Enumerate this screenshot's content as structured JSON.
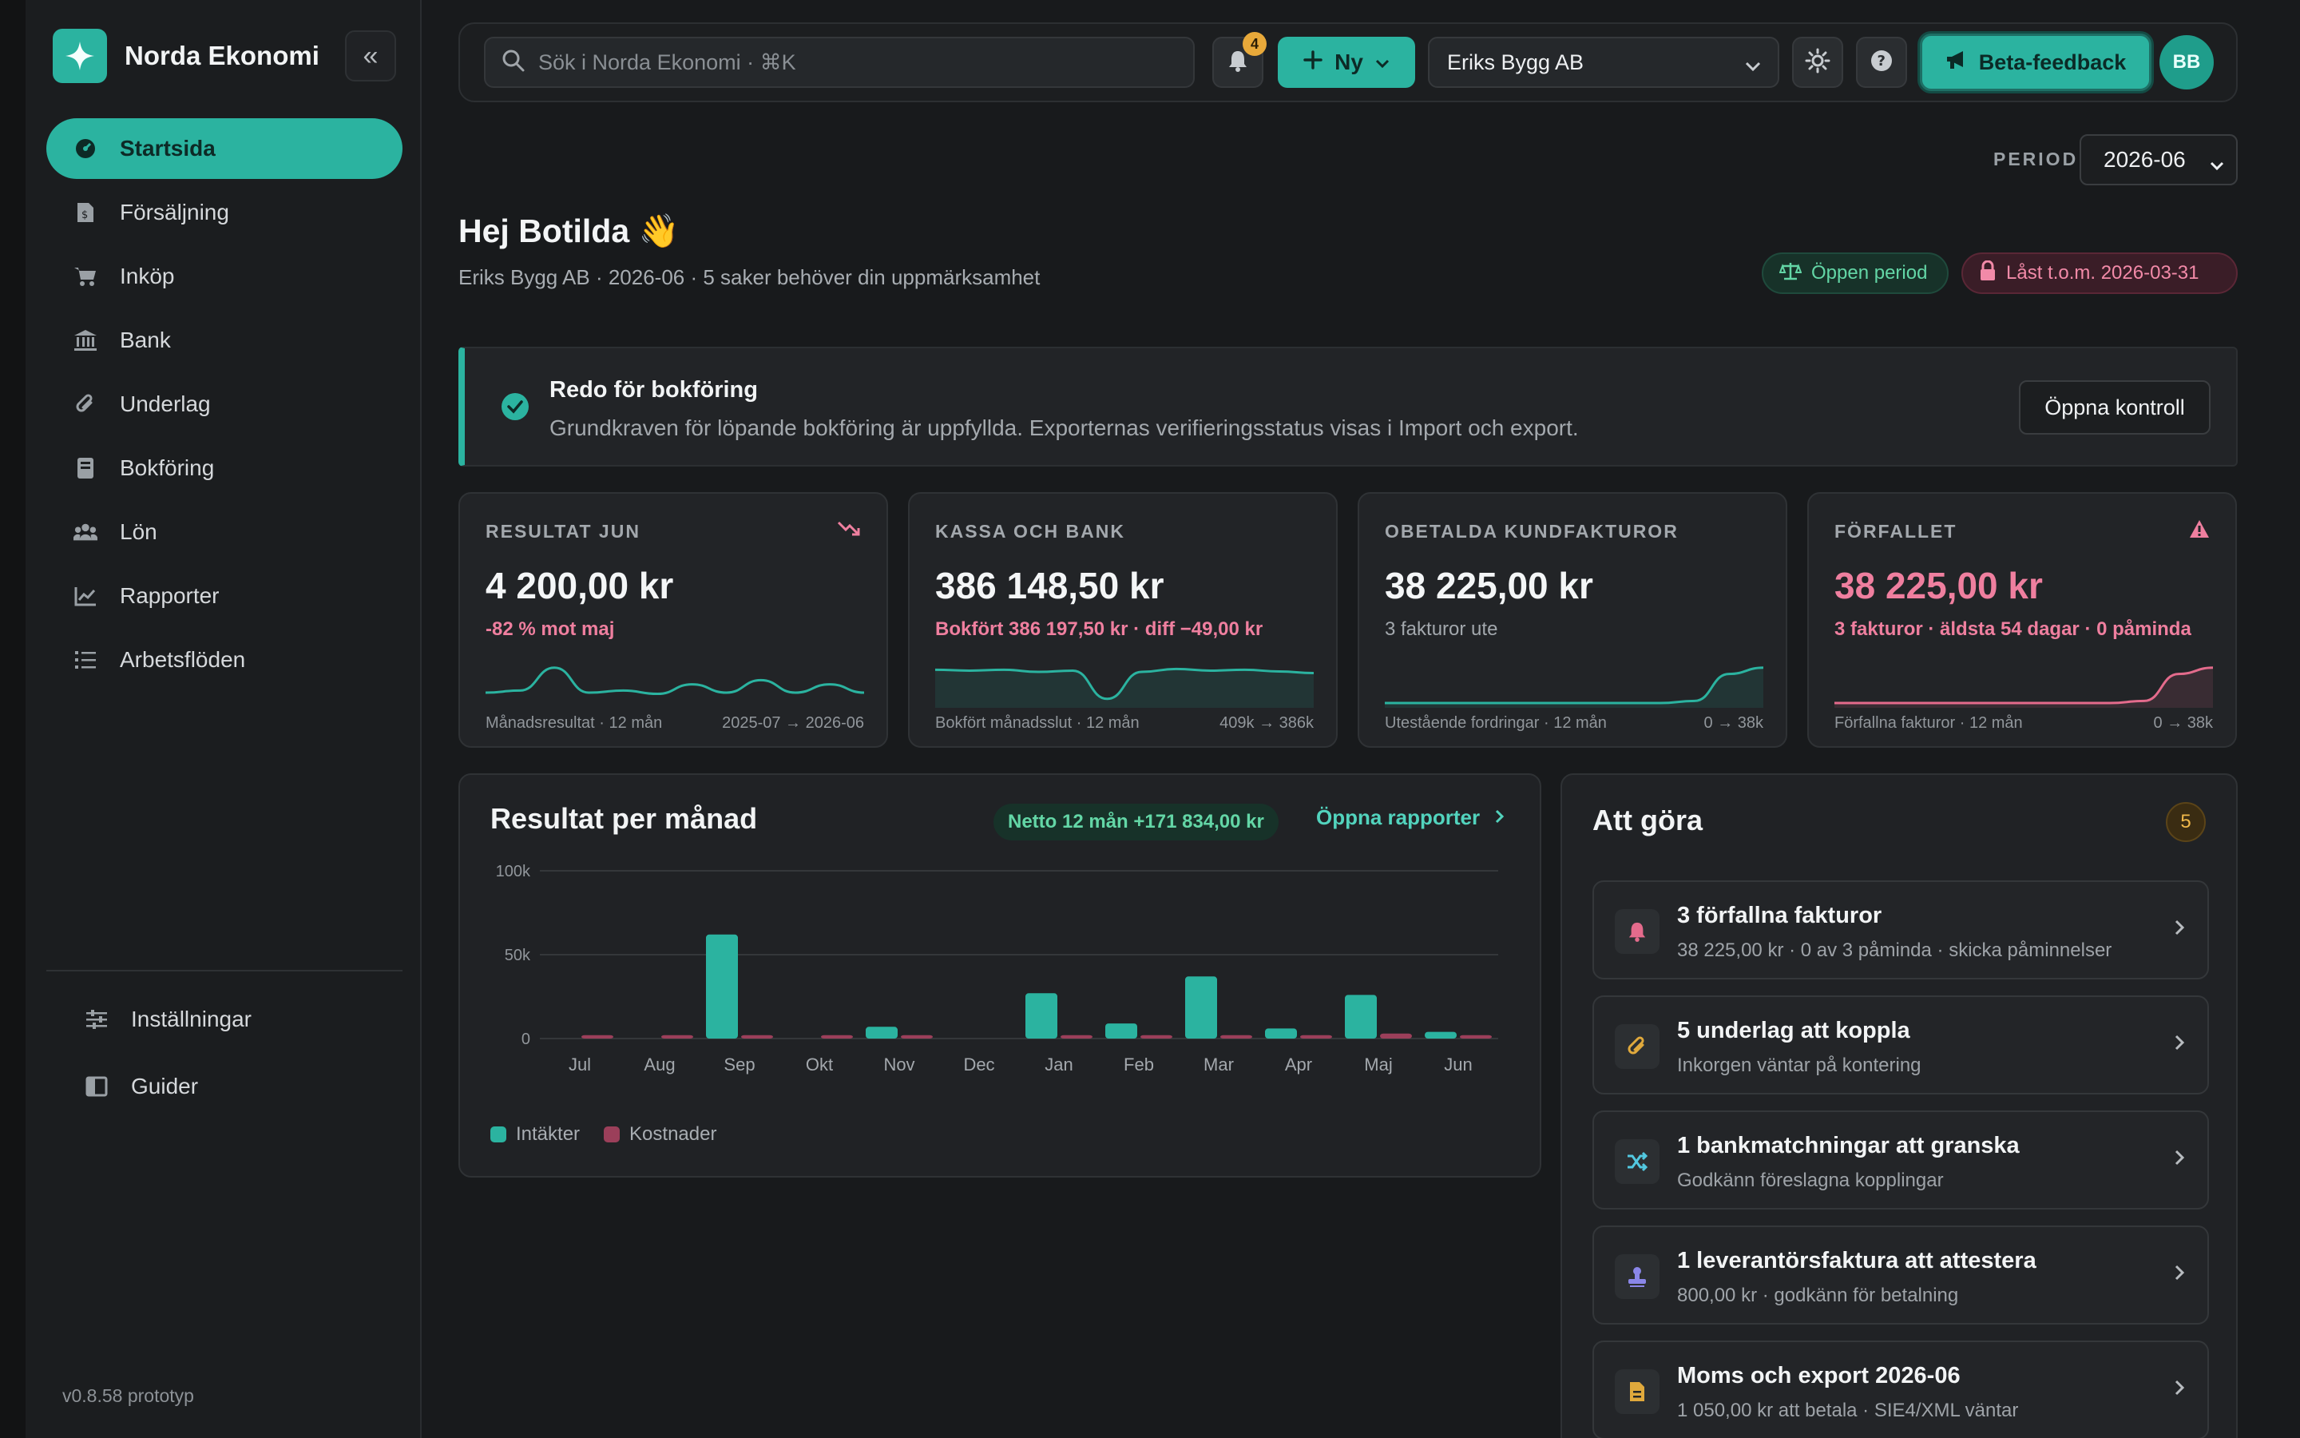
{
  "app": {
    "name": "Norda Ekonomi",
    "version": "v0.8.58 prototyp"
  },
  "sidebar": {
    "items": [
      {
        "label": "Startsida",
        "icon": "dashboard-icon",
        "active": true
      },
      {
        "label": "Försäljning",
        "icon": "invoice-icon"
      },
      {
        "label": "Inköp",
        "icon": "cart-icon"
      },
      {
        "label": "Bank",
        "icon": "bank-icon"
      },
      {
        "label": "Underlag",
        "icon": "paperclip-icon"
      },
      {
        "label": "Bokföring",
        "icon": "book-icon"
      },
      {
        "label": "Lön",
        "icon": "users-icon"
      },
      {
        "label": "Rapporter",
        "icon": "line-chart-icon"
      },
      {
        "label": "Arbetsflöden",
        "icon": "checklist-icon"
      }
    ],
    "footer_items": [
      {
        "label": "Inställningar",
        "icon": "sliders-icon"
      },
      {
        "label": "Guider",
        "icon": "guide-book-icon"
      }
    ]
  },
  "topbar": {
    "search_placeholder": "Sök i Norda Ekonomi · ⌘K",
    "notification_count": "4",
    "new_label": "Ny",
    "company": "Eriks Bygg AB",
    "beta_label": "Beta-feedback",
    "avatar_initials": "BB"
  },
  "period": {
    "label": "PERIOD",
    "value": "2026-06"
  },
  "header": {
    "greeting": "Hej Botilda 👋",
    "subline": "Eriks Bygg AB · 2026-06 · 5 saker behöver din uppmärksamhet",
    "open_period": "Öppen period",
    "locked": "Låst t.o.m. 2026-03-31"
  },
  "alert": {
    "title": "Redo för bokföring",
    "text": "Grundkraven för löpande bokföring är uppfyllda. Exporternas verifieringsstatus visas i Import och export.",
    "button": "Öppna kontroll"
  },
  "kpis": [
    {
      "label": "RESULTAT JUN",
      "value": "4 200,00 kr",
      "sub": "-82 % mot maj",
      "foot_left": "Månadsresultat · 12 mån",
      "foot_right": "2025-07 → 2026-06",
      "color": "#2bb3a0",
      "spark": [
        0.25,
        0.3,
        0.85,
        0.25,
        0.3,
        0.22,
        0.45,
        0.25,
        0.55,
        0.25,
        0.45,
        0.25
      ]
    },
    {
      "label": "KASSA OCH BANK",
      "value": "386 148,50 kr",
      "sub": "Bokfört 386 197,50 kr · diff −49,00 kr",
      "foot_left": "Bokfört månadsslut · 12 mån",
      "foot_right": "409k → 386k",
      "color": "#2bb3a0",
      "spark": [
        0.8,
        0.78,
        0.8,
        0.75,
        0.78,
        0.1,
        0.75,
        0.82,
        0.78,
        0.8,
        0.76,
        0.72
      ]
    },
    {
      "label": "OBETALDA KUNDFAKTUROR",
      "value": "38 225,00 kr",
      "sub": "3 fakturor ute",
      "foot_left": "Utestående fordringar · 12 mån",
      "foot_right": "0 → 38k",
      "color": "#2bb3a0",
      "spark": [
        0,
        0,
        0,
        0,
        0,
        0,
        0,
        0,
        0,
        0.05,
        0.7,
        0.85
      ]
    },
    {
      "label": "FÖRFALLET",
      "value": "38 225,00 kr",
      "sub": "3 fakturor · äldsta 54 dagar · 0 påminda",
      "foot_left": "Förfallna fakturor · 12 mån",
      "foot_right": "0 → 38k",
      "color": "#e46b8c",
      "spark": [
        0,
        0,
        0,
        0,
        0,
        0,
        0,
        0,
        0,
        0.05,
        0.7,
        0.85
      ]
    }
  ],
  "chart": {
    "title": "Resultat per månad",
    "netto": "Netto 12 mån +171 834,00 kr",
    "link": "Öppna rapporter",
    "legend_income": "Intäkter",
    "legend_cost": "Kostnader"
  },
  "chart_data": {
    "type": "bar",
    "categories": [
      "Jul",
      "Aug",
      "Sep",
      "Okt",
      "Nov",
      "Dec",
      "Jan",
      "Feb",
      "Mar",
      "Apr",
      "Maj",
      "Jun"
    ],
    "series": [
      {
        "name": "Intäkter",
        "color": "#2bb3a0",
        "values": [
          0,
          0,
          62000,
          0,
          7000,
          0,
          27000,
          9000,
          37000,
          6000,
          26000,
          4000
        ]
      },
      {
        "name": "Kostnader",
        "color": "#9b3f5a",
        "values": [
          2000,
          2000,
          2000,
          2000,
          2000,
          0,
          2000,
          2000,
          2000,
          2000,
          3000,
          2000
        ]
      }
    ],
    "yticks": [
      "100k",
      "50k",
      "0"
    ],
    "ylim": [
      0,
      100000
    ],
    "grid": true
  },
  "todo": {
    "title": "Att göra",
    "count": "5",
    "items": [
      {
        "title": "3 förfallna fakturor",
        "sub": "38 225,00 kr · 0 av 3 påminda · skicka påminnelser",
        "icon": "bell-icon",
        "color": "#e46b8c"
      },
      {
        "title": "5 underlag att koppla",
        "sub": "Inkorgen väntar på kontering",
        "icon": "paperclip-icon",
        "color": "#e0a93c"
      },
      {
        "title": "1 bankmatchningar att granska",
        "sub": "Godkänn föreslagna kopplingar",
        "icon": "shuffle-icon",
        "color": "#52c8e0"
      },
      {
        "title": "1 leverantörsfaktura att attestera",
        "sub": "800,00 kr · godkänn för betalning",
        "icon": "stamp-icon",
        "color": "#8a86e8"
      },
      {
        "title": "Moms och export 2026-06",
        "sub": "1 050,00 kr att betala · SIE4/XML väntar",
        "icon": "document-icon",
        "color": "#e0a93c"
      }
    ]
  }
}
